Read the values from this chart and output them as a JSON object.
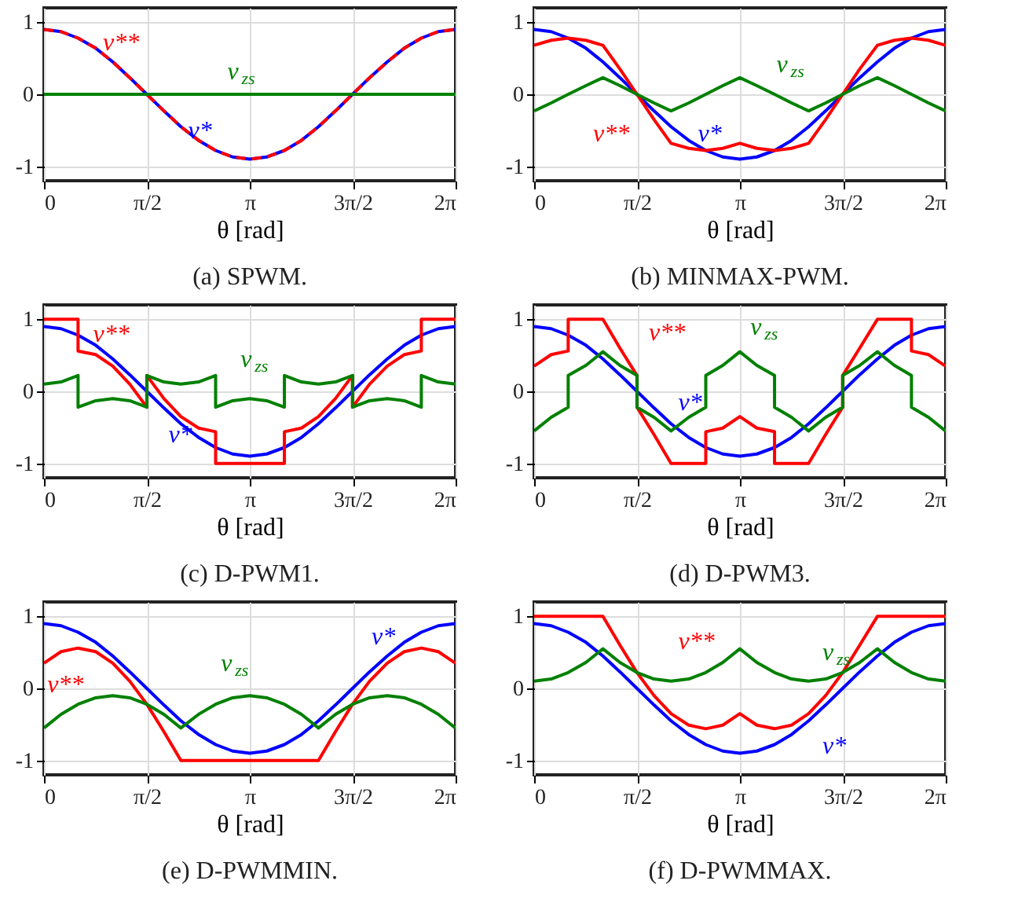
{
  "chart_data": [
    {
      "type": "line",
      "title": "(a) SPWM.",
      "xlabel": "θ [rad]",
      "xlim": [
        0,
        6.2832
      ],
      "ylim": [
        -1.2,
        1.2
      ],
      "yticks": [
        -1,
        0,
        1
      ],
      "xticks": [
        {
          "value": 0,
          "label": "0"
        },
        {
          "value": 1.5708,
          "label": "π/2"
        },
        {
          "value": 3.1416,
          "label": "π"
        },
        {
          "value": 4.7124,
          "label": "3π/2"
        },
        {
          "value": 6.2832,
          "label": "2π"
        }
      ],
      "grid": true,
      "legend": false,
      "x": [
        0,
        0.26,
        0.52,
        0.79,
        1.05,
        1.31,
        1.57,
        1.83,
        2.09,
        2.36,
        2.62,
        2.88,
        3.14,
        3.4,
        3.67,
        3.93,
        4.19,
        4.45,
        4.71,
        4.97,
        5.24,
        5.5,
        5.76,
        6.02,
        6.28
      ],
      "series": [
        {
          "name": "v*",
          "color": "#0000ff",
          "values": [
            0.9,
            0.87,
            0.78,
            0.64,
            0.45,
            0.23,
            0,
            -0.23,
            -0.45,
            -0.64,
            -0.78,
            -0.87,
            -0.9,
            -0.87,
            -0.78,
            -0.64,
            -0.45,
            -0.23,
            0,
            0.23,
            0.45,
            0.64,
            0.78,
            0.87,
            0.9
          ]
        },
        {
          "name": "v**",
          "color": "#ff0000",
          "line_style": "dashed",
          "values": [
            0.9,
            0.87,
            0.78,
            0.64,
            0.45,
            0.23,
            0,
            -0.23,
            -0.45,
            -0.64,
            -0.78,
            -0.87,
            -0.9,
            -0.87,
            -0.78,
            -0.64,
            -0.45,
            -0.23,
            0,
            0.23,
            0.45,
            0.64,
            0.78,
            0.87,
            0.9
          ]
        },
        {
          "name": "v$_{zs}$",
          "color": "#008000",
          "values": [
            0,
            0,
            0,
            0,
            0,
            0,
            0,
            0,
            0,
            0,
            0,
            0,
            0,
            0,
            0,
            0,
            0,
            0,
            0,
            0,
            0,
            0,
            0,
            0,
            0
          ]
        }
      ]
    },
    {
      "type": "line",
      "title": "(b) MINMAX-PWM.",
      "xlabel": "θ [rad]",
      "xlim": [
        0,
        6.2832
      ],
      "ylim": [
        -1.2,
        1.2
      ],
      "yticks": [
        -1,
        0,
        1
      ],
      "xticks": [
        {
          "value": 0,
          "label": "0"
        },
        {
          "value": 1.5708,
          "label": "π/2"
        },
        {
          "value": 3.1416,
          "label": "π"
        },
        {
          "value": 4.7124,
          "label": "3π/2"
        },
        {
          "value": 6.2832,
          "label": "2π"
        }
      ],
      "grid": true,
      "legend": false,
      "x": [
        0,
        0.26,
        0.52,
        0.79,
        1.05,
        1.31,
        1.57,
        1.83,
        2.09,
        2.36,
        2.62,
        2.88,
        3.14,
        3.4,
        3.67,
        3.93,
        4.19,
        4.45,
        4.71,
        4.97,
        5.24,
        5.5,
        5.76,
        6.02,
        6.28
      ],
      "series": [
        {
          "name": "v*",
          "color": "#0000ff",
          "values": [
            0.9,
            0.87,
            0.78,
            0.64,
            0.45,
            0.23,
            0,
            -0.23,
            -0.45,
            -0.64,
            -0.78,
            -0.87,
            -0.9,
            -0.87,
            -0.78,
            -0.64,
            -0.45,
            -0.23,
            0,
            0.23,
            0.45,
            0.64,
            0.78,
            0.87,
            0.9
          ]
        },
        {
          "name": "v**",
          "color": "#ff0000",
          "values": [
            0.68,
            0.75,
            0.78,
            0.75,
            0.68,
            0.35,
            0,
            -0.35,
            -0.68,
            -0.75,
            -0.78,
            -0.75,
            -0.68,
            -0.75,
            -0.78,
            -0.75,
            -0.68,
            -0.35,
            0,
            0.35,
            0.68,
            0.75,
            0.78,
            0.75,
            0.68
          ]
        },
        {
          "name": "v$_{zs}$",
          "color": "#008000",
          "values": [
            -0.23,
            -0.12,
            0,
            0.12,
            0.23,
            0.12,
            0,
            -0.12,
            -0.23,
            -0.12,
            0,
            0.12,
            0.23,
            0.12,
            0,
            -0.12,
            -0.23,
            -0.12,
            0,
            0.12,
            0.23,
            0.12,
            0,
            -0.12,
            -0.23
          ]
        }
      ]
    },
    {
      "type": "line",
      "title": "(c) D-PWM1.",
      "xlabel": "θ [rad]",
      "xlim": [
        0,
        6.2832
      ],
      "ylim": [
        -1.2,
        1.2
      ],
      "yticks": [
        -1,
        0,
        1
      ],
      "xticks": [
        {
          "value": 0,
          "label": "0"
        },
        {
          "value": 1.5708,
          "label": "π/2"
        },
        {
          "value": 3.1416,
          "label": "π"
        },
        {
          "value": 4.7124,
          "label": "3π/2"
        },
        {
          "value": 6.2832,
          "label": "2π"
        }
      ],
      "grid": true,
      "legend": false,
      "x": [
        0,
        0.26,
        0.52,
        0.52,
        0.79,
        1.05,
        1.31,
        1.57,
        1.57,
        1.83,
        2.09,
        2.36,
        2.62,
        2.62,
        2.88,
        3.14,
        3.4,
        3.67,
        3.67,
        3.93,
        4.19,
        4.45,
        4.71,
        4.71,
        4.97,
        5.24,
        5.5,
        5.76,
        5.76,
        6.02,
        6.28
      ],
      "series": [
        {
          "name": "v*",
          "color": "#0000ff",
          "x": [
            0,
            0.26,
            0.52,
            0.79,
            1.05,
            1.31,
            1.57,
            1.83,
            2.09,
            2.36,
            2.62,
            2.88,
            3.14,
            3.4,
            3.67,
            3.93,
            4.19,
            4.45,
            4.71,
            4.97,
            5.24,
            5.5,
            5.76,
            6.02,
            6.28
          ],
          "values": [
            0.9,
            0.87,
            0.78,
            0.64,
            0.45,
            0.23,
            0,
            -0.23,
            -0.45,
            -0.64,
            -0.78,
            -0.87,
            -0.9,
            -0.87,
            -0.78,
            -0.64,
            -0.45,
            -0.23,
            0,
            0.23,
            0.45,
            0.64,
            0.78,
            0.87,
            0.9
          ]
        },
        {
          "name": "v**",
          "color": "#ff0000",
          "values": [
            1,
            1,
            1,
            0.56,
            0.51,
            0.35,
            0.1,
            -0.22,
            0.22,
            -0.1,
            -0.35,
            -0.51,
            -0.56,
            -1,
            -1,
            -1,
            -1,
            -1,
            -0.56,
            -0.51,
            -0.35,
            -0.1,
            0.22,
            -0.22,
            0.1,
            0.35,
            0.51,
            0.56,
            1,
            1,
            1
          ]
        },
        {
          "name": "v$_{zs}$",
          "color": "#008000",
          "values": [
            0.1,
            0.13,
            0.22,
            -0.22,
            -0.13,
            -0.1,
            -0.13,
            -0.22,
            0.22,
            0.13,
            0.1,
            0.13,
            0.22,
            -0.22,
            -0.13,
            -0.1,
            -0.13,
            -0.22,
            0.22,
            0.13,
            0.1,
            0.13,
            0.22,
            -0.22,
            -0.13,
            -0.1,
            -0.13,
            -0.22,
            0.22,
            0.13,
            0.1
          ]
        }
      ]
    },
    {
      "type": "line",
      "title": "(d) D-PWM3.",
      "xlabel": "θ [rad]",
      "xlim": [
        0,
        6.2832
      ],
      "ylim": [
        -1.2,
        1.2
      ],
      "yticks": [
        -1,
        0,
        1
      ],
      "xticks": [
        {
          "value": 0,
          "label": "0"
        },
        {
          "value": 1.5708,
          "label": "π/2"
        },
        {
          "value": 3.1416,
          "label": "π"
        },
        {
          "value": 4.7124,
          "label": "3π/2"
        },
        {
          "value": 6.2832,
          "label": "2π"
        }
      ],
      "grid": true,
      "legend": false,
      "x": [
        0,
        0.26,
        0.52,
        0.52,
        0.79,
        1.05,
        1.31,
        1.57,
        1.57,
        1.83,
        2.09,
        2.36,
        2.62,
        2.62,
        2.88,
        3.14,
        3.4,
        3.67,
        3.67,
        3.93,
        4.19,
        4.45,
        4.71,
        4.71,
        4.97,
        5.24,
        5.5,
        5.76,
        5.76,
        6.02,
        6.28
      ],
      "series": [
        {
          "name": "v*",
          "color": "#0000ff",
          "x": [
            0,
            0.26,
            0.52,
            0.79,
            1.05,
            1.31,
            1.57,
            1.83,
            2.09,
            2.36,
            2.62,
            2.88,
            3.14,
            3.4,
            3.67,
            3.93,
            4.19,
            4.45,
            4.71,
            4.97,
            5.24,
            5.5,
            5.76,
            6.02,
            6.28
          ],
          "values": [
            0.9,
            0.87,
            0.78,
            0.64,
            0.45,
            0.23,
            0,
            -0.23,
            -0.45,
            -0.64,
            -0.78,
            -0.87,
            -0.9,
            -0.87,
            -0.78,
            -0.64,
            -0.45,
            -0.23,
            0,
            0.23,
            0.45,
            0.64,
            0.78,
            0.87,
            0.9
          ]
        },
        {
          "name": "v**",
          "color": "#ff0000",
          "values": [
            0.35,
            0.51,
            0.56,
            1,
            1,
            1,
            0.6,
            0.22,
            -0.22,
            -0.6,
            -1,
            -1,
            -1,
            -0.56,
            -0.51,
            -0.35,
            -0.51,
            -0.56,
            -1,
            -1,
            -1,
            -0.6,
            -0.22,
            0.22,
            0.6,
            1,
            1,
            1,
            0.56,
            0.51,
            0.35
          ]
        },
        {
          "name": "v$_{zs}$",
          "color": "#008000",
          "values": [
            -0.55,
            -0.36,
            -0.22,
            0.22,
            0.36,
            0.55,
            0.36,
            0.22,
            -0.22,
            -0.36,
            -0.55,
            -0.36,
            -0.22,
            0.22,
            0.36,
            0.55,
            0.36,
            0.22,
            -0.22,
            -0.36,
            -0.55,
            -0.36,
            -0.22,
            0.22,
            0.36,
            0.55,
            0.36,
            0.22,
            -0.22,
            -0.36,
            -0.55
          ]
        }
      ]
    },
    {
      "type": "line",
      "title": "(e) D-PWMMIN.",
      "xlabel": "θ [rad]",
      "xlim": [
        0,
        6.2832
      ],
      "ylim": [
        -1.2,
        1.2
      ],
      "yticks": [
        -1,
        0,
        1
      ],
      "xticks": [
        {
          "value": 0,
          "label": "0"
        },
        {
          "value": 1.5708,
          "label": "π/2"
        },
        {
          "value": 3.1416,
          "label": "π"
        },
        {
          "value": 4.7124,
          "label": "3π/2"
        },
        {
          "value": 6.2832,
          "label": "2π"
        }
      ],
      "grid": true,
      "legend": false,
      "x": [
        0,
        0.26,
        0.52,
        0.79,
        1.05,
        1.31,
        1.57,
        1.83,
        2.09,
        2.36,
        2.62,
        2.88,
        3.14,
        3.4,
        3.67,
        3.93,
        4.19,
        4.45,
        4.71,
        4.97,
        5.24,
        5.5,
        5.76,
        6.02,
        6.28
      ],
      "series": [
        {
          "name": "v*",
          "color": "#0000ff",
          "values": [
            0.9,
            0.87,
            0.78,
            0.64,
            0.45,
            0.23,
            0,
            -0.23,
            -0.45,
            -0.64,
            -0.78,
            -0.87,
            -0.9,
            -0.87,
            -0.78,
            -0.64,
            -0.45,
            -0.23,
            0,
            0.23,
            0.45,
            0.64,
            0.78,
            0.87,
            0.9
          ]
        },
        {
          "name": "v**",
          "color": "#ff0000",
          "values": [
            0.35,
            0.51,
            0.56,
            0.51,
            0.35,
            0.1,
            -0.22,
            -0.6,
            -1,
            -1,
            -1,
            -1,
            -1,
            -1,
            -1,
            -1,
            -1,
            -0.6,
            -0.22,
            0.1,
            0.35,
            0.51,
            0.56,
            0.51,
            0.35
          ]
        },
        {
          "name": "v$_{zs}$",
          "color": "#008000",
          "values": [
            -0.55,
            -0.36,
            -0.22,
            -0.13,
            -0.1,
            -0.13,
            -0.22,
            -0.36,
            -0.55,
            -0.36,
            -0.22,
            -0.13,
            -0.1,
            -0.13,
            -0.22,
            -0.36,
            -0.55,
            -0.36,
            -0.22,
            -0.13,
            -0.1,
            -0.13,
            -0.22,
            -0.36,
            -0.55
          ]
        }
      ]
    },
    {
      "type": "line",
      "title": "(f) D-PWMMAX.",
      "xlabel": "θ [rad]",
      "xlim": [
        0,
        6.2832
      ],
      "ylim": [
        -1.2,
        1.2
      ],
      "yticks": [
        -1,
        0,
        1
      ],
      "xticks": [
        {
          "value": 0,
          "label": "0"
        },
        {
          "value": 1.5708,
          "label": "π/2"
        },
        {
          "value": 3.1416,
          "label": "π"
        },
        {
          "value": 4.7124,
          "label": "3π/2"
        },
        {
          "value": 6.2832,
          "label": "2π"
        }
      ],
      "grid": true,
      "legend": false,
      "x": [
        0,
        0.26,
        0.52,
        0.79,
        1.05,
        1.31,
        1.57,
        1.83,
        2.09,
        2.36,
        2.62,
        2.88,
        3.14,
        3.4,
        3.67,
        3.93,
        4.19,
        4.45,
        4.71,
        4.97,
        5.24,
        5.5,
        5.76,
        6.02,
        6.28
      ],
      "series": [
        {
          "name": "v*",
          "color": "#0000ff",
          "values": [
            0.9,
            0.87,
            0.78,
            0.64,
            0.45,
            0.23,
            0,
            -0.23,
            -0.45,
            -0.64,
            -0.78,
            -0.87,
            -0.9,
            -0.87,
            -0.78,
            -0.64,
            -0.45,
            -0.23,
            0,
            0.23,
            0.45,
            0.64,
            0.78,
            0.87,
            0.9
          ]
        },
        {
          "name": "v**",
          "color": "#ff0000",
          "values": [
            1,
            1,
            1,
            1,
            1,
            0.6,
            0.22,
            -0.1,
            -0.35,
            -0.51,
            -0.56,
            -0.51,
            -0.35,
            -0.51,
            -0.56,
            -0.51,
            -0.35,
            -0.1,
            0.22,
            0.6,
            1,
            1,
            1,
            1,
            1
          ]
        },
        {
          "name": "v$_{zs}$",
          "color": "#008000",
          "values": [
            0.1,
            0.13,
            0.22,
            0.36,
            0.55,
            0.36,
            0.22,
            0.13,
            0.1,
            0.13,
            0.22,
            0.36,
            0.55,
            0.36,
            0.22,
            0.13,
            0.1,
            0.13,
            0.22,
            0.36,
            0.55,
            0.36,
            0.22,
            0.13,
            0.1
          ]
        }
      ]
    }
  ]
}
